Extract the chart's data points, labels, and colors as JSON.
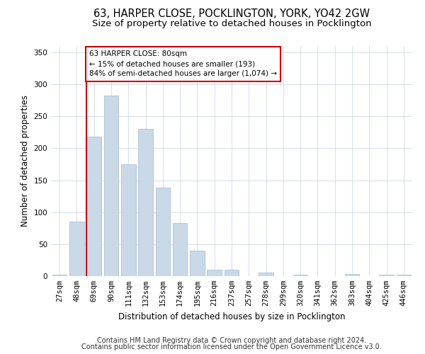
{
  "title1": "63, HARPER CLOSE, POCKLINGTON, YORK, YO42 2GW",
  "title2": "Size of property relative to detached houses in Pocklington",
  "xlabel": "Distribution of detached houses by size in Pocklington",
  "ylabel": "Number of detached properties",
  "categories": [
    "27sqm",
    "48sqm",
    "69sqm",
    "90sqm",
    "111sqm",
    "132sqm",
    "153sqm",
    "174sqm",
    "195sqm",
    "216sqm",
    "237sqm",
    "257sqm",
    "278sqm",
    "299sqm",
    "320sqm",
    "341sqm",
    "362sqm",
    "383sqm",
    "404sqm",
    "425sqm",
    "446sqm"
  ],
  "values": [
    2,
    85,
    218,
    283,
    175,
    230,
    138,
    83,
    40,
    10,
    10,
    0,
    6,
    0,
    2,
    0,
    0,
    3,
    0,
    2,
    2
  ],
  "bar_color": "#c9d9e8",
  "bar_edge_color": "#a0b8cc",
  "vline_color": "#cc0000",
  "vline_index": 2,
  "annotation_text": "63 HARPER CLOSE: 80sqm\n← 15% of detached houses are smaller (193)\n84% of semi-detached houses are larger (1,074) →",
  "annotation_box_color": "#ffffff",
  "annotation_box_edge_color": "#cc0000",
  "ylim": [
    0,
    360
  ],
  "yticks": [
    0,
    50,
    100,
    150,
    200,
    250,
    300,
    350
  ],
  "footer1": "Contains HM Land Registry data © Crown copyright and database right 2024.",
  "footer2": "Contains public sector information licensed under the Open Government Licence v3.0.",
  "background_color": "#ffffff",
  "grid_color": "#d0d8e8",
  "title1_fontsize": 10.5,
  "title2_fontsize": 9.5,
  "axis_label_fontsize": 8.5,
  "tick_fontsize": 7.5,
  "footer_fontsize": 7,
  "annotation_fontsize": 7.5
}
